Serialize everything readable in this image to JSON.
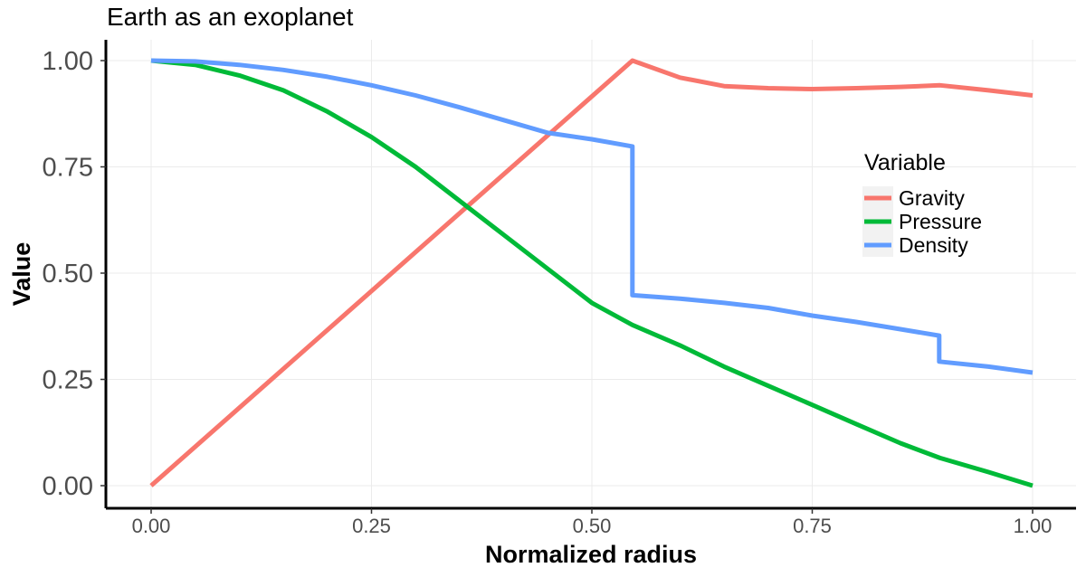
{
  "chart_data": {
    "type": "line",
    "title": "Earth as an exoplanet",
    "xlabel": "Normalized radius",
    "ylabel": "Value",
    "xlim": [
      0,
      1
    ],
    "ylim": [
      0,
      1
    ],
    "x_ticks": [
      0,
      0.25,
      0.5,
      0.75,
      1
    ],
    "x_tick_labels": [
      "0.00",
      "0.25",
      "0.50",
      "0.75",
      "1.00"
    ],
    "y_ticks": [
      0,
      0.25,
      0.5,
      0.75,
      1
    ],
    "y_tick_labels": [
      "0.00",
      "0.25",
      "0.50",
      "0.75",
      "1.00"
    ],
    "grid": true,
    "legend": {
      "title": "Variable",
      "position": "right"
    },
    "series": [
      {
        "name": "Gravity",
        "color": "#F8766D",
        "points": [
          [
            0.0,
            0.0
          ],
          [
            0.546,
            1.0
          ],
          [
            0.6,
            0.96
          ],
          [
            0.65,
            0.94
          ],
          [
            0.7,
            0.935
          ],
          [
            0.75,
            0.933
          ],
          [
            0.8,
            0.935
          ],
          [
            0.85,
            0.938
          ],
          [
            0.895,
            0.942
          ],
          [
            0.95,
            0.93
          ],
          [
            1.0,
            0.918
          ]
        ]
      },
      {
        "name": "Pressure",
        "color": "#00BA38",
        "points": [
          [
            0.0,
            1.0
          ],
          [
            0.05,
            0.99
          ],
          [
            0.1,
            0.965
          ],
          [
            0.15,
            0.93
          ],
          [
            0.2,
            0.88
          ],
          [
            0.25,
            0.82
          ],
          [
            0.3,
            0.75
          ],
          [
            0.35,
            0.67
          ],
          [
            0.4,
            0.59
          ],
          [
            0.45,
            0.51
          ],
          [
            0.5,
            0.43
          ],
          [
            0.546,
            0.378
          ],
          [
            0.6,
            0.33
          ],
          [
            0.65,
            0.28
          ],
          [
            0.7,
            0.235
          ],
          [
            0.75,
            0.19
          ],
          [
            0.8,
            0.145
          ],
          [
            0.85,
            0.1
          ],
          [
            0.895,
            0.065
          ],
          [
            0.95,
            0.032
          ],
          [
            1.0,
            0.0
          ]
        ]
      },
      {
        "name": "Density",
        "color": "#619CFF",
        "points": [
          [
            0.0,
            1.0
          ],
          [
            0.05,
            0.998
          ],
          [
            0.1,
            0.99
          ],
          [
            0.15,
            0.978
          ],
          [
            0.2,
            0.962
          ],
          [
            0.25,
            0.942
          ],
          [
            0.3,
            0.918
          ],
          [
            0.35,
            0.89
          ],
          [
            0.4,
            0.86
          ],
          [
            0.45,
            0.83
          ],
          [
            0.5,
            0.815
          ],
          [
            0.546,
            0.798
          ],
          [
            0.546,
            0.448
          ],
          [
            0.6,
            0.44
          ],
          [
            0.65,
            0.43
          ],
          [
            0.7,
            0.418
          ],
          [
            0.75,
            0.4
          ],
          [
            0.8,
            0.385
          ],
          [
            0.85,
            0.368
          ],
          [
            0.894,
            0.353
          ],
          [
            0.894,
            0.292
          ],
          [
            0.95,
            0.28
          ],
          [
            1.0,
            0.266
          ]
        ]
      }
    ]
  }
}
